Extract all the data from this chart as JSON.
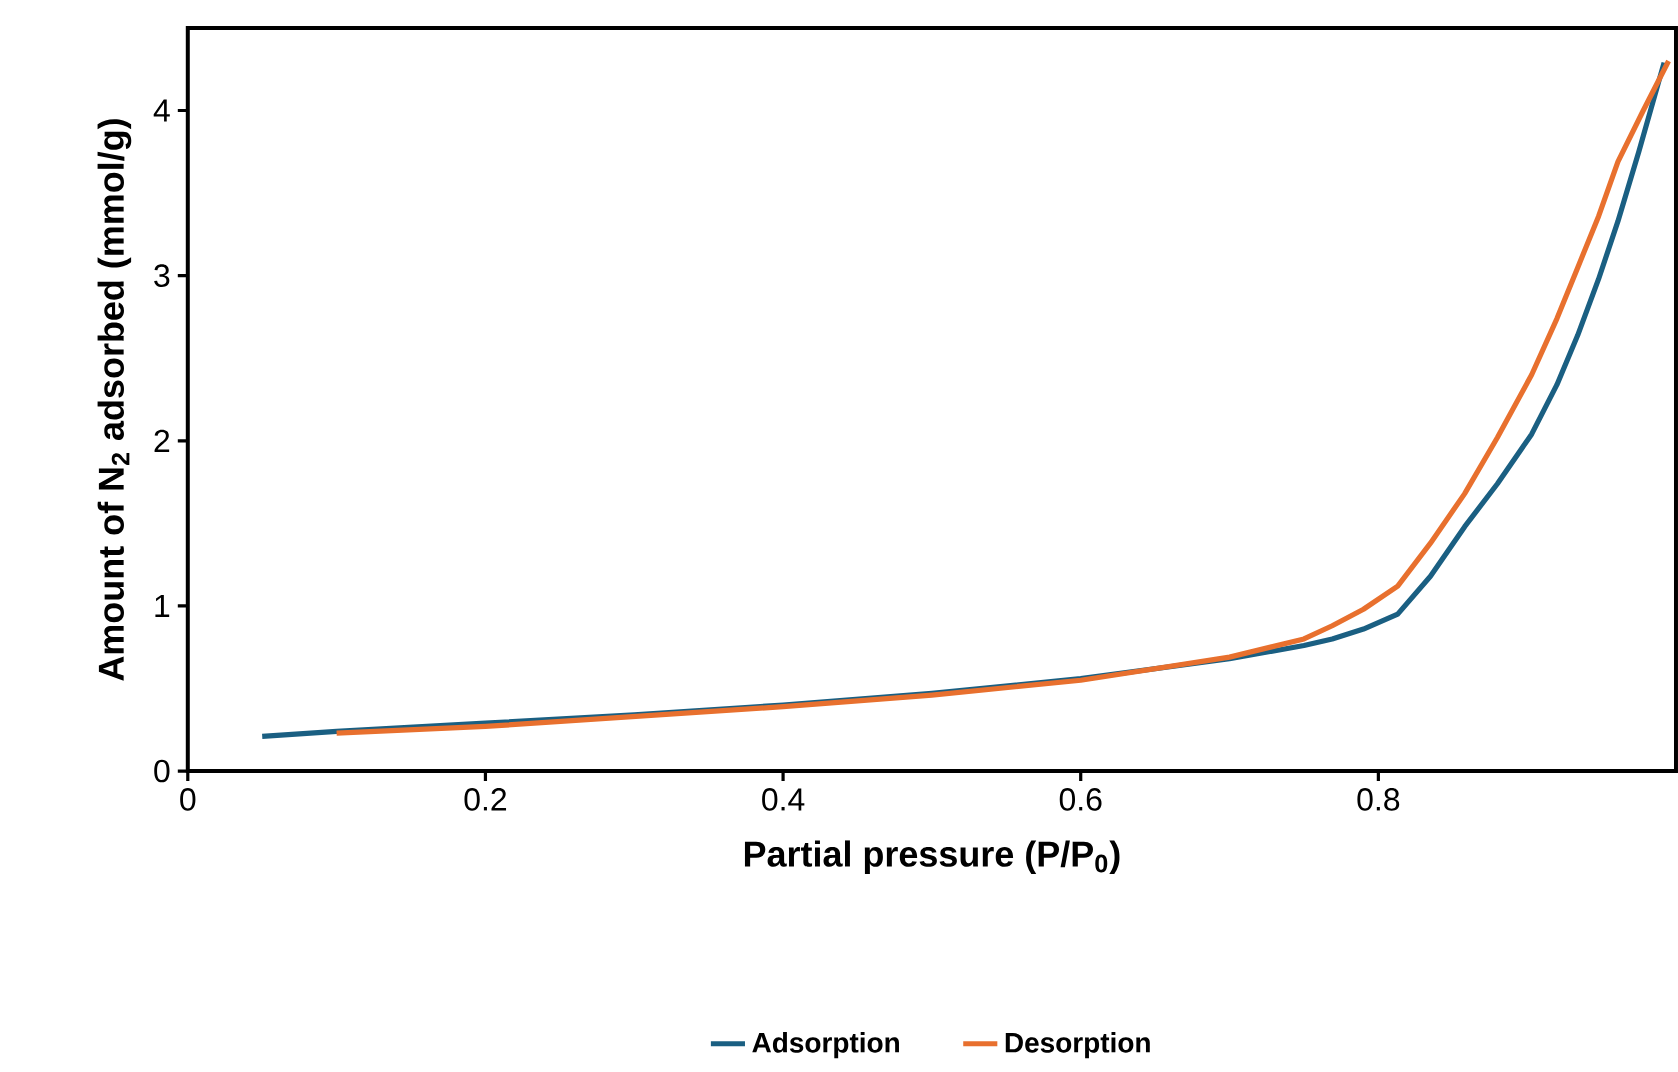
{
  "chart_data": {
    "type": "line",
    "xlabel": "Partial pressure (P/P$_{0}$)",
    "ylabel": "Amount of N$_{2}$ adsorbed (mmol/g)",
    "xlim": [
      0,
      1
    ],
    "ylim": [
      0,
      4.5
    ],
    "xticks": [
      0,
      0.2,
      0.4,
      0.6,
      0.8
    ],
    "yticks": [
      0,
      1,
      2,
      3,
      4
    ],
    "legend": "bottom",
    "grid": false,
    "marker": "none",
    "line_style": "solid",
    "series": [
      {
        "name": "Adsorption",
        "color": "#1a5f82",
        "x": [
          0.05,
          0.1,
          0.2,
          0.3,
          0.4,
          0.5,
          0.6,
          0.7,
          0.75,
          0.769,
          0.79,
          0.813,
          0.835,
          0.858,
          0.88,
          0.903,
          0.92,
          0.934,
          0.948,
          0.961,
          0.975,
          0.992
        ],
        "values": [
          0.21,
          0.24,
          0.29,
          0.34,
          0.4,
          0.47,
          0.56,
          0.68,
          0.76,
          0.8,
          0.86,
          0.95,
          1.18,
          1.48,
          1.74,
          2.04,
          2.34,
          2.64,
          2.98,
          3.33,
          3.75,
          4.29
        ]
      },
      {
        "name": "Desorption",
        "color": "#e8702e",
        "x": [
          0.1,
          0.2,
          0.3,
          0.4,
          0.5,
          0.6,
          0.7,
          0.75,
          0.769,
          0.79,
          0.813,
          0.835,
          0.858,
          0.88,
          0.903,
          0.92,
          0.934,
          0.948,
          0.961,
          0.978,
          0.995
        ],
        "values": [
          0.23,
          0.27,
          0.33,
          0.39,
          0.46,
          0.55,
          0.69,
          0.8,
          0.88,
          0.98,
          1.12,
          1.38,
          1.68,
          2.02,
          2.4,
          2.74,
          3.05,
          3.36,
          3.69,
          4.0,
          4.3
        ]
      }
    ]
  }
}
